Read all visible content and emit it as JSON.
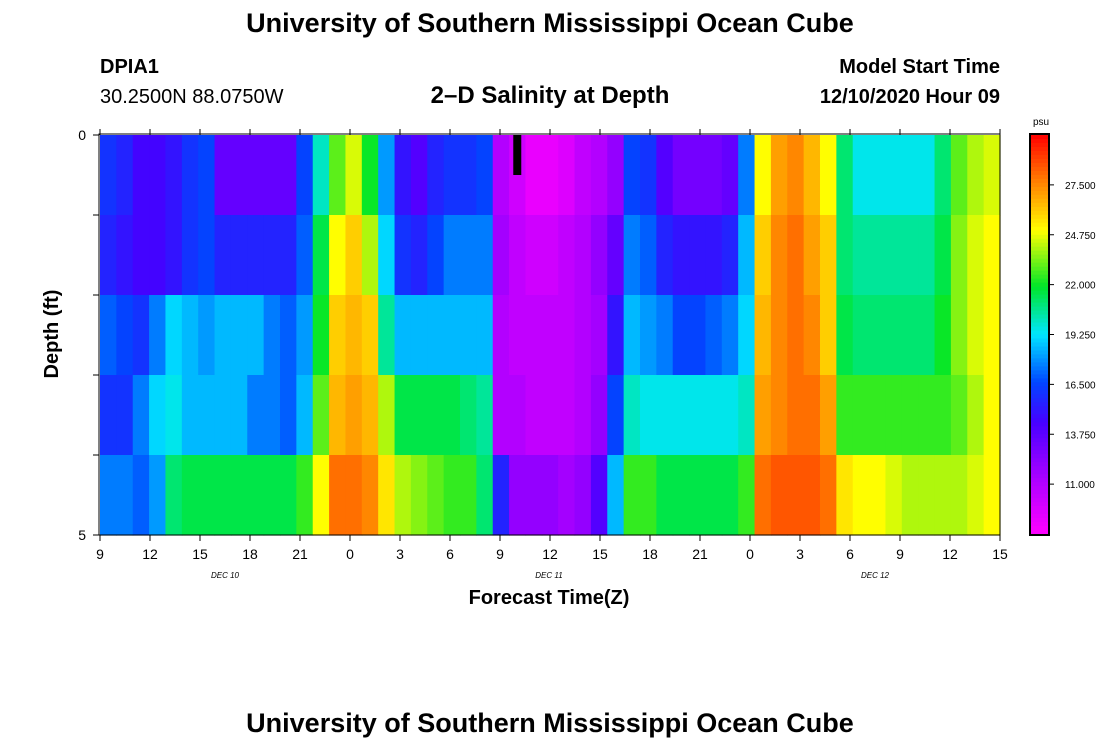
{
  "header": {
    "title": "University of Southern Mississippi Ocean Cube",
    "station_id": "DPIA1",
    "coords": "30.2500N 88.0750W",
    "model_start_label": "Model Start Time",
    "model_start_value": "12/10/2020 Hour 09"
  },
  "footer": {
    "title": "University of Southern Mississippi Ocean Cube"
  },
  "chart_data": {
    "type": "heatmap",
    "title": "2–D Salinity at Depth",
    "xlabel": "Forecast Time(Z)",
    "ylabel": "Depth (ft)",
    "x_tick_labels": [
      "9",
      "12",
      "15",
      "18",
      "21",
      "0",
      "3",
      "6",
      "9",
      "12",
      "15",
      "18",
      "21",
      "0",
      "3",
      "6",
      "9",
      "12",
      "15"
    ],
    "day_labels": [
      "DEC 10",
      "DEC 11",
      "DEC 12"
    ],
    "y_tick_labels": [
      "0",
      "5"
    ],
    "ylim": [
      0,
      5
    ],
    "colorbar": {
      "unit": "psu",
      "min": 8.25,
      "max": 30.25,
      "tick_labels": [
        "11.000",
        "13.750",
        "16.500",
        "19.250",
        "22.000",
        "24.750",
        "27.500"
      ],
      "tick_values": [
        11.0,
        13.75,
        16.5,
        19.25,
        22.0,
        24.75,
        27.5
      ]
    },
    "x_hours": [
      0,
      1,
      2,
      3,
      4,
      5,
      6,
      7,
      8,
      9,
      10,
      11,
      12,
      13,
      14,
      15,
      16,
      17,
      18,
      19,
      20,
      21,
      22,
      23,
      24,
      25,
      26,
      27,
      28,
      29,
      30,
      31,
      32,
      33,
      34,
      35,
      36,
      37,
      38,
      39,
      40,
      41,
      42,
      43,
      44,
      45,
      46,
      47,
      48,
      49,
      50,
      51,
      52,
      53,
      54
    ],
    "depth_layers": [
      0.25,
      0.75,
      1.25,
      1.75,
      2.25,
      2.75,
      3.25,
      3.75,
      4.25,
      4.75
    ],
    "salinity": [
      [
        16,
        15.5,
        14.5,
        14.5,
        15,
        16,
        16.5,
        13.5,
        13.5,
        13.5,
        13.5,
        13.5,
        16.5,
        20,
        23,
        24.5,
        22,
        18,
        15,
        14,
        15.5,
        16,
        16,
        16.5,
        11,
        10,
        9,
        9,
        9.5,
        10.5,
        11,
        12,
        16.5,
        16,
        14,
        13,
        13,
        13,
        13.5,
        17.5,
        25,
        27,
        27.5,
        26.5,
        25,
        21,
        19.5,
        19.5,
        19.5,
        19.5,
        19.5,
        21,
        23,
        24,
        24.5
      ],
      [
        16,
        15.5,
        14.5,
        14.5,
        15,
        16,
        16.5,
        13.5,
        13.5,
        13.5,
        13.5,
        13.5,
        16.5,
        20,
        23,
        24.5,
        22,
        18,
        15,
        14,
        15.5,
        16,
        16,
        16.5,
        11,
        10,
        9,
        9,
        9.5,
        10.5,
        11,
        12,
        16.5,
        16,
        14,
        13,
        13,
        13,
        13.5,
        17.5,
        25,
        27,
        27.5,
        26.5,
        25,
        21,
        19.5,
        19.5,
        19.5,
        19.5,
        19.5,
        21,
        23,
        24,
        24.5
      ],
      [
        15.5,
        15,
        14.5,
        14.5,
        15,
        16,
        16.5,
        15.5,
        15.5,
        15.5,
        15.5,
        15.5,
        17,
        21.5,
        25,
        26,
        24,
        19,
        16,
        15.5,
        16.5,
        17.5,
        17.5,
        17.5,
        11.5,
        10.5,
        10,
        10,
        10.5,
        11,
        12,
        13.5,
        17.5,
        17,
        15.5,
        15,
        15,
        15,
        15.5,
        18.5,
        26,
        27.5,
        28,
        27,
        26,
        21,
        20.5,
        20.5,
        20.5,
        20.5,
        20.5,
        21.5,
        23.5,
        24.5,
        25
      ],
      [
        15.5,
        15,
        14.5,
        14.5,
        15,
        16,
        16.5,
        15.5,
        15.5,
        15.5,
        15.5,
        15.5,
        17,
        21.5,
        25,
        26,
        24,
        19,
        16,
        15.5,
        16.5,
        17.5,
        17.5,
        17.5,
        11.5,
        10.5,
        10,
        10,
        10.5,
        11,
        12,
        13.5,
        17.5,
        17,
        15.5,
        15,
        15,
        15,
        15.5,
        18.5,
        26,
        27.5,
        28,
        27,
        26,
        21,
        20.5,
        20.5,
        20.5,
        20.5,
        20.5,
        21.5,
        23.5,
        24.5,
        25
      ],
      [
        17,
        16.5,
        16,
        17.5,
        19,
        18.5,
        18,
        18.5,
        18.5,
        18.5,
        17.5,
        17,
        18,
        22,
        26,
        26.5,
        26,
        20.5,
        18.5,
        18.5,
        18.5,
        18.5,
        18.5,
        18.5,
        11,
        10.5,
        10.5,
        10.5,
        10.5,
        11,
        11.5,
        15,
        18.5,
        18,
        17.5,
        16.5,
        16.5,
        17,
        17.5,
        19,
        26.5,
        27.5,
        28,
        27.5,
        26,
        21.5,
        21,
        21,
        21,
        21,
        21,
        22,
        23.5,
        24.5,
        25
      ],
      [
        17,
        16.5,
        16,
        17.5,
        19,
        18.5,
        18,
        18.5,
        18.5,
        18.5,
        17.5,
        17,
        18,
        22,
        26,
        26.5,
        26,
        20.5,
        18.5,
        18.5,
        18.5,
        18.5,
        18.5,
        18.5,
        11,
        10.5,
        10.5,
        10.5,
        10.5,
        11,
        11.5,
        15,
        18.5,
        18,
        17.5,
        16.5,
        16.5,
        17,
        17.5,
        19,
        26.5,
        27.5,
        28,
        27.5,
        26,
        21.5,
        21,
        21,
        21,
        21,
        21,
        22,
        23.5,
        24.5,
        25
      ],
      [
        16,
        16,
        17.5,
        19,
        19.5,
        18.5,
        18.5,
        18.5,
        18.5,
        17.5,
        17.5,
        17,
        18.5,
        23,
        26.5,
        27,
        26.5,
        24,
        21.5,
        21.5,
        21.5,
        21.5,
        21,
        20.5,
        11,
        11,
        10.5,
        10.5,
        10.5,
        11,
        12,
        16.5,
        20,
        19.5,
        19.5,
        19.5,
        19.5,
        19.5,
        19.5,
        20,
        27,
        27.5,
        28,
        28,
        27,
        22.5,
        22.5,
        22.5,
        22.5,
        22.5,
        22.5,
        22.5,
        23,
        24,
        25
      ],
      [
        16,
        16,
        17.5,
        19,
        19.5,
        18.5,
        18.5,
        18.5,
        18.5,
        17.5,
        17.5,
        17,
        18.5,
        23,
        26.5,
        27,
        26.5,
        24,
        21.5,
        21.5,
        21.5,
        21.5,
        21,
        20.5,
        11,
        11,
        10.5,
        10.5,
        10.5,
        11,
        12,
        16.5,
        20,
        19.5,
        19.5,
        19.5,
        19.5,
        19.5,
        19.5,
        20,
        27,
        27.5,
        28,
        28,
        27,
        22.5,
        22.5,
        22.5,
        22.5,
        22.5,
        22.5,
        22.5,
        23,
        24,
        25
      ],
      [
        17.5,
        17.5,
        17,
        18,
        21,
        21.5,
        21.5,
        21.5,
        21.5,
        21.5,
        21.5,
        21.5,
        22.5,
        25,
        28,
        28,
        27.5,
        25.5,
        24,
        23.5,
        23,
        22.5,
        22.5,
        21,
        15.5,
        12,
        12,
        12,
        11.5,
        12,
        14,
        18.5,
        22.5,
        22.5,
        21.5,
        21.5,
        21.5,
        21.5,
        21.5,
        22.5,
        28,
        28.5,
        28.5,
        28.5,
        28,
        25.5,
        25,
        25,
        24.5,
        24,
        24,
        24,
        24,
        24.5,
        25
      ],
      [
        17.5,
        17.5,
        17,
        18,
        21,
        21.5,
        21.5,
        21.5,
        21.5,
        21.5,
        21.5,
        21.5,
        22.5,
        25,
        28,
        28,
        27.5,
        25.5,
        24,
        23.5,
        23,
        22.5,
        22.5,
        21,
        15.5,
        12,
        12,
        12,
        11.5,
        12,
        14,
        18.5,
        22.5,
        22.5,
        21.5,
        21.5,
        21.5,
        21.5,
        21.5,
        22.5,
        28,
        28.5,
        28.5,
        28.5,
        28,
        25.5,
        25,
        25,
        24.5,
        24,
        24,
        24,
        24,
        24.5,
        25
      ]
    ],
    "model_start_marker_hour": 25.5
  }
}
